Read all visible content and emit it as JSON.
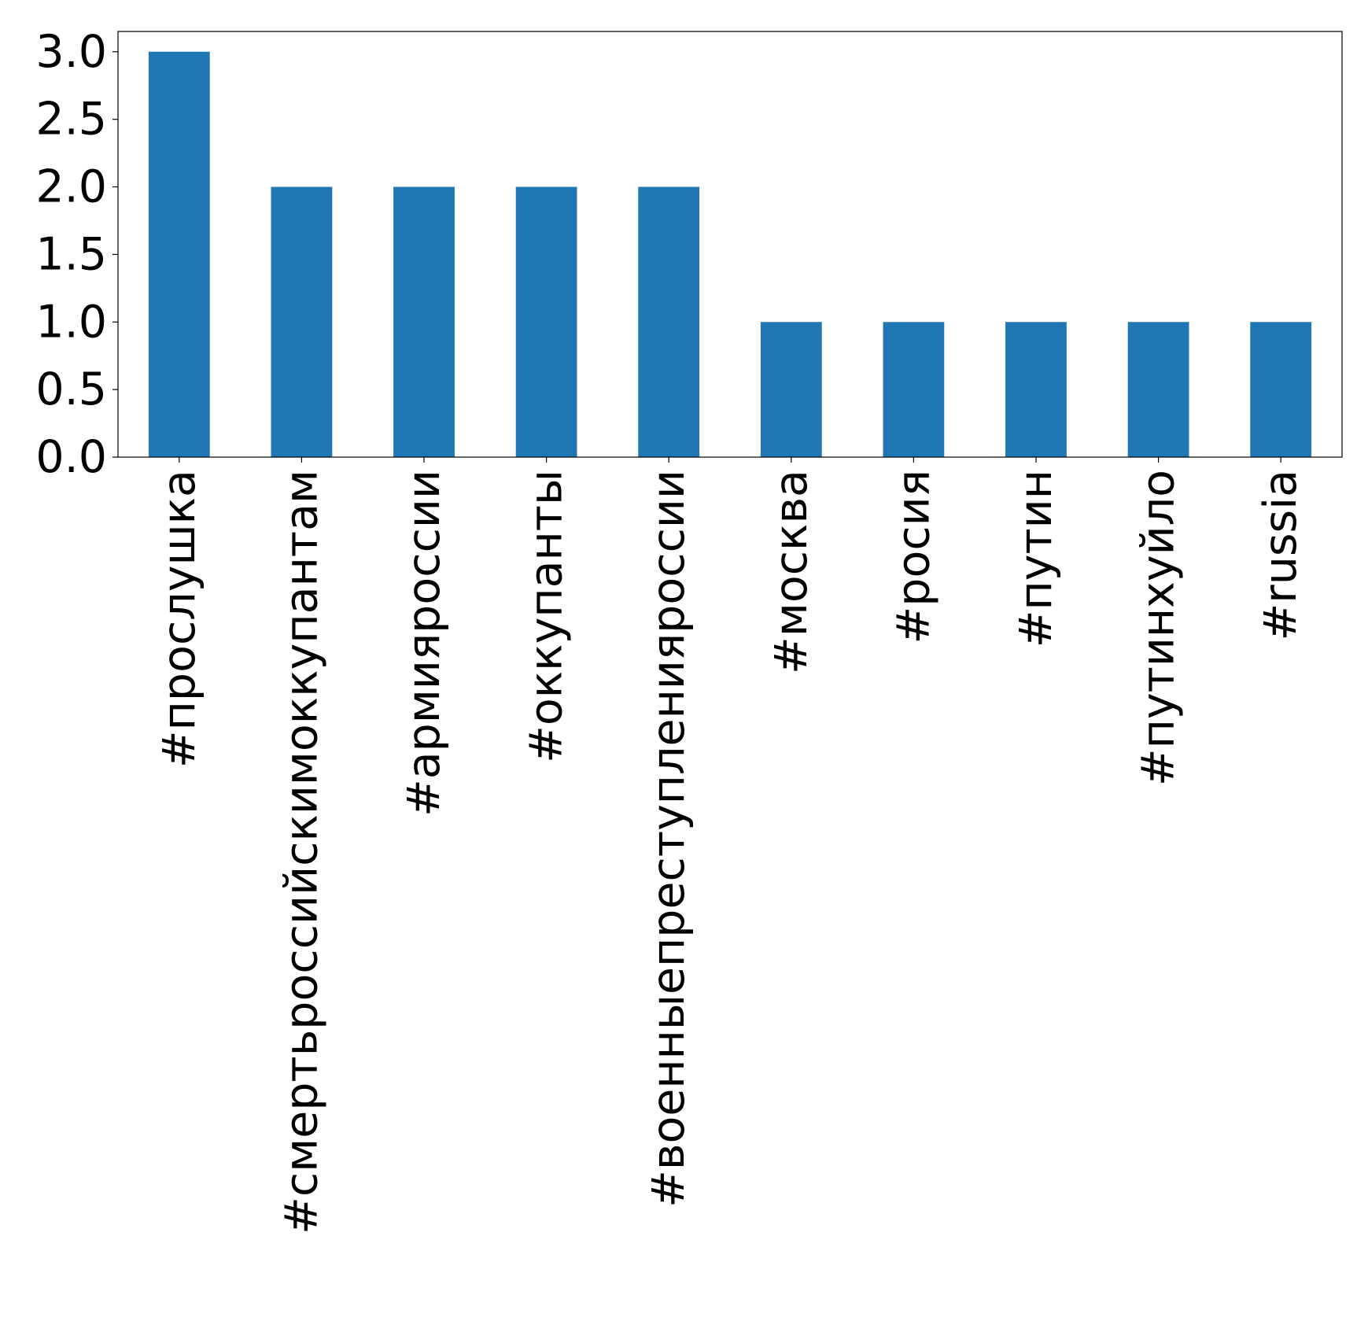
{
  "chart_data": {
    "type": "bar",
    "title": "",
    "xlabel": "",
    "ylabel": "",
    "categories": [
      "#прослушка",
      "#смертьроссийскимоккупантам",
      "#армияроссии",
      "#оккупанты",
      "#военныепреступленияроссии",
      "#москва",
      "#росия",
      "#путин",
      "#путинхуйло",
      "#russia"
    ],
    "values": [
      3,
      2,
      2,
      2,
      2,
      1,
      1,
      1,
      1,
      1
    ],
    "ylim": [
      0,
      3.15
    ],
    "yticks": [
      0.0,
      0.5,
      1.0,
      1.5,
      2.0,
      2.5,
      3.0
    ],
    "ytick_labels": [
      "0.0",
      "0.5",
      "1.0",
      "1.5",
      "2.0",
      "2.5",
      "3.0"
    ],
    "bar_color": "#1f77b4",
    "grid": false,
    "legend": "none"
  }
}
